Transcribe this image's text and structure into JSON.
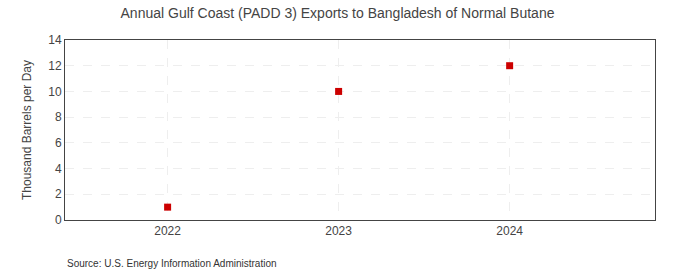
{
  "chart_data": {
    "type": "scatter",
    "title": "Annual Gulf Coast (PADD 3) Exports to Bangladesh of Normal Butane",
    "ylabel": "Thousand Barrels per Day",
    "source": "Source: U.S. Energy Information Administration",
    "x": [
      2022,
      2023,
      2024
    ],
    "values": [
      1,
      10,
      12
    ],
    "color": "#cc0000",
    "marker": "square",
    "xlim": [
      2021.4,
      2024.85
    ],
    "ylim": [
      0,
      14
    ],
    "xticks": [
      2022,
      2023,
      2024
    ],
    "yticks": [
      0,
      2,
      4,
      6,
      8,
      10,
      12,
      14
    ],
    "grid": true
  }
}
